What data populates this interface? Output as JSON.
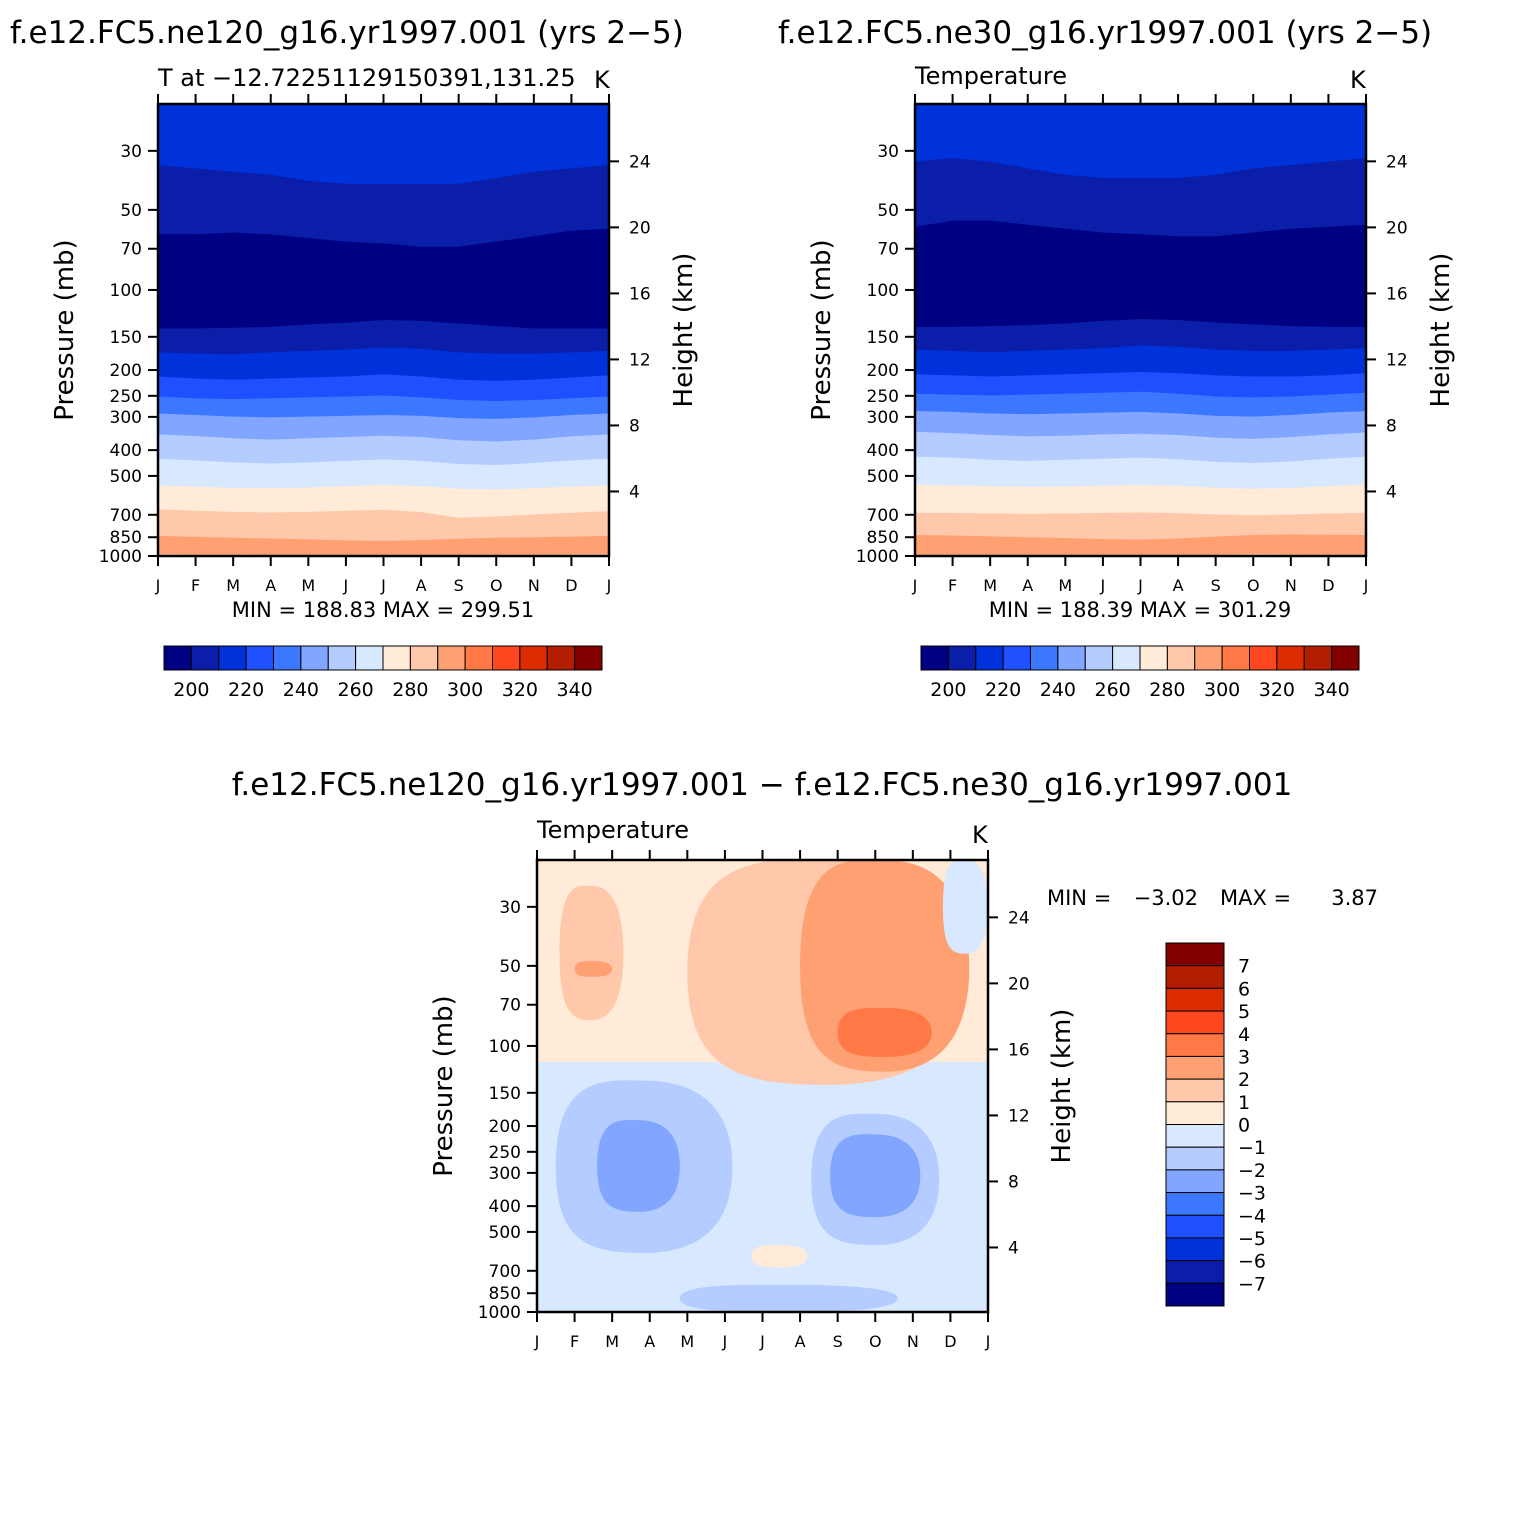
{
  "figure": {
    "panel1_header": "f.e12.FC5.ne120_g16.yr1997.001 (yrs 2−5)",
    "panel2_header": "f.e12.FC5.ne30_g16.yr1997.001 (yrs 2−5)",
    "panel3_header": "f.e12.FC5.ne120_g16.yr1997.001 − f.e12.FC5.ne30_g16.yr1997.001"
  },
  "colors": {
    "abs_scale": [
      "#000082",
      "#0a1eaa",
      "#0032dc",
      "#1e50ff",
      "#3c78ff",
      "#82a5ff",
      "#b4ccff",
      "#d7e8ff",
      "#ffebd7",
      "#ffc8aa",
      "#ffa073",
      "#ff7846",
      "#ff461e",
      "#dc2d00",
      "#b41e00",
      "#820000"
    ],
    "diff_scale": [
      "#000082",
      "#0a1eaa",
      "#0032dc",
      "#1e50ff",
      "#3c78ff",
      "#82a5ff",
      "#b4ccff",
      "#d7e8ff",
      "#ffebd7",
      "#ffc8aa",
      "#ffa073",
      "#ff7846",
      "#ff461e",
      "#dc2d00",
      "#b41e00",
      "#820000"
    ]
  },
  "chart_data": [
    {
      "type": "heatmap",
      "title": "T at −12.72251129150391,131.25",
      "units": "K",
      "xlabel": "",
      "ylabel": "Pressure (mb)",
      "y2label": "Height (km)",
      "x_ticks": [
        "J",
        "F",
        "M",
        "A",
        "M",
        "J",
        "J",
        "A",
        "S",
        "O",
        "N",
        "D",
        "J"
      ],
      "y_ticks": [
        30,
        50,
        70,
        100,
        150,
        200,
        250,
        300,
        400,
        500,
        700,
        850,
        1000
      ],
      "y_scale": "log",
      "ylim": [
        1000,
        20
      ],
      "y2_ticks": [
        4,
        8,
        12,
        16,
        20,
        24
      ],
      "stats": "MIN = 188.83 MAX = 299.51",
      "min": 188.83,
      "max": 299.51,
      "colorbar_labels": [
        "200",
        "220",
        "240",
        "260",
        "280",
        "300",
        "320",
        "340"
      ],
      "contour_levels": [
        195,
        200,
        205,
        210,
        215,
        220,
        225,
        230,
        235,
        240,
        245,
        250,
        255,
        260,
        265,
        270,
        275,
        280,
        285,
        290,
        295,
        300,
        305,
        310,
        315,
        320,
        325,
        330,
        335,
        340,
        345
      ],
      "level_boundaries_mb": {
        "x": [
          0,
          1,
          2,
          3,
          4,
          5,
          6,
          7,
          8,
          9,
          10,
          11,
          12
        ],
        "lines": [
          {
            "from_class": 1,
            "to_class": 0,
            "p": [
              62,
              62,
              61,
              62,
              64,
              66,
              67,
              69,
              69,
              66,
              63,
              60,
              59
            ]
          },
          {
            "from_class": 2,
            "to_class": 1,
            "p": [
              34,
              35,
              36,
              37,
              39,
              40,
              40,
              40,
              40,
              38,
              36,
              35,
              34
            ]
          },
          {
            "from_class": 0,
            "to_class": 1,
            "p": [
              140,
              140,
              139,
              138,
              135,
              133,
              130,
              131,
              134,
              137,
              140,
              140,
              140
            ]
          },
          {
            "from_class": 1,
            "to_class": 2,
            "p": [
              172,
              174,
              175,
              172,
              170,
              168,
              165,
              167,
              172,
              174,
              174,
              172,
              170
            ]
          },
          {
            "from_class": 2,
            "to_class": 3,
            "p": [
              212,
              216,
              218,
              216,
              214,
              212,
              208,
              212,
              218,
              220,
              218,
              214,
              210
            ]
          },
          {
            "from_class": 3,
            "to_class": 4,
            "p": [
              252,
              256,
              258,
              256,
              254,
              252,
              250,
              254,
              260,
              262,
              260,
              256,
              252
            ]
          },
          {
            "from_class": 4,
            "to_class": 5,
            "p": [
              292,
              296,
              300,
              302,
              300,
              298,
              296,
              298,
              304,
              306,
              302,
              296,
              292
            ]
          },
          {
            "from_class": 5,
            "to_class": 6,
            "p": [
              350,
              355,
              362,
              366,
              362,
              358,
              354,
              358,
              368,
              372,
              366,
              356,
              350
            ]
          },
          {
            "from_class": 6,
            "to_class": 7,
            "p": [
              432,
              438,
              446,
              450,
              446,
              440,
              434,
              440,
              452,
              456,
              448,
              438,
              432
            ]
          },
          {
            "from_class": 7,
            "to_class": 8,
            "p": [
              545,
              550,
              556,
              558,
              554,
              548,
              542,
              548,
              560,
              564,
              558,
              550,
              545
            ]
          },
          {
            "from_class": 8,
            "to_class": 9,
            "p": [
              670,
              678,
              684,
              688,
              684,
              678,
              672,
              686,
              720,
              712,
              700,
              690,
              680
            ]
          },
          {
            "from_class": 9,
            "to_class": 10,
            "p": [
              842,
              850,
              856,
              862,
              868,
              876,
              880,
              874,
              864,
              856,
              852,
              848,
              842
            ]
          },
          {
            "from_class": 10,
            "to_class": 11,
            "p": [
              985,
              990,
              992,
              994,
              996,
              998,
              998,
              996,
              994,
              992,
              990,
              988,
              985
            ]
          }
        ]
      }
    },
    {
      "type": "heatmap",
      "title": "Temperature",
      "units": "K",
      "xlabel": "",
      "ylabel": "Pressure (mb)",
      "y2label": "Height (km)",
      "x_ticks": [
        "J",
        "F",
        "M",
        "A",
        "M",
        "J",
        "J",
        "A",
        "S",
        "O",
        "N",
        "D",
        "J"
      ],
      "y_ticks": [
        30,
        50,
        70,
        100,
        150,
        200,
        250,
        300,
        400,
        500,
        700,
        850,
        1000
      ],
      "y_scale": "log",
      "ylim": [
        1000,
        20
      ],
      "y2_ticks": [
        4,
        8,
        12,
        16,
        20,
        24
      ],
      "stats": "MIN = 188.39 MAX = 301.29",
      "min": 188.39,
      "max": 301.29,
      "colorbar_labels": [
        "200",
        "220",
        "240",
        "260",
        "280",
        "300",
        "320",
        "340"
      ],
      "contour_levels": [
        195,
        200,
        205,
        210,
        215,
        220,
        225,
        230,
        235,
        240,
        245,
        250,
        255,
        260,
        265,
        270,
        275,
        280,
        285,
        290,
        295,
        300,
        305,
        310,
        315,
        320,
        325,
        330,
        335,
        340,
        345
      ],
      "level_boundaries_mb": {
        "x": [
          0,
          1,
          2,
          3,
          4,
          5,
          6,
          7,
          8,
          9,
          10,
          11,
          12
        ],
        "lines": [
          {
            "from_class": 1,
            "to_class": 0,
            "p": [
              58,
              55,
              55,
              57,
              59,
              61,
              62,
              63,
              63,
              61,
              59,
              58,
              57
            ]
          },
          {
            "from_class": 2,
            "to_class": 1,
            "p": [
              33,
              32,
              33,
              35,
              37,
              38,
              38,
              38,
              37,
              35,
              34,
              33,
              32
            ]
          },
          {
            "from_class": 0,
            "to_class": 1,
            "p": [
              138,
              138,
              137,
              136,
              134,
              131,
              129,
              130,
              133,
              135,
              137,
              138,
              138
            ]
          },
          {
            "from_class": 1,
            "to_class": 2,
            "p": [
              168,
              170,
              172,
              170,
              168,
              166,
              162,
              164,
              168,
              170,
              170,
              168,
              166
            ]
          },
          {
            "from_class": 2,
            "to_class": 3,
            "p": [
              208,
              210,
              212,
              210,
              208,
              206,
              204,
              206,
              210,
              212,
              212,
              210,
              206
            ]
          },
          {
            "from_class": 3,
            "to_class": 4,
            "p": [
              246,
              248,
              250,
              248,
              246,
              244,
              242,
              246,
              252,
              254,
              252,
              248,
              244
            ]
          },
          {
            "from_class": 4,
            "to_class": 5,
            "p": [
              286,
              288,
              292,
              294,
              292,
              290,
              288,
              292,
              298,
              300,
              296,
              290,
              286
            ]
          },
          {
            "from_class": 5,
            "to_class": 6,
            "p": [
              342,
              346,
              352,
              356,
              354,
              350,
              348,
              352,
              360,
              364,
              358,
              350,
              344
            ]
          },
          {
            "from_class": 6,
            "to_class": 7,
            "p": [
              424,
              428,
              436,
              440,
              436,
              432,
              428,
              434,
              444,
              448,
              442,
              432,
              424
            ]
          },
          {
            "from_class": 7,
            "to_class": 8,
            "p": [
              540,
              544,
              548,
              552,
              550,
              546,
              542,
              546,
              556,
              560,
              556,
              548,
              540
            ]
          },
          {
            "from_class": 8,
            "to_class": 9,
            "p": [
              690,
              690,
              694,
              696,
              694,
              690,
              688,
              692,
              700,
              704,
              700,
              694,
              690
            ]
          },
          {
            "from_class": 9,
            "to_class": 10,
            "p": [
              836,
              840,
              846,
              852,
              858,
              866,
              870,
              862,
              848,
              836,
              832,
              834,
              836
            ]
          },
          {
            "from_class": 10,
            "to_class": 11,
            "p": [
              1000,
              1000,
              1000,
              1000,
              1000,
              1000,
              1000,
              1000,
              992,
              984,
              990,
              1000,
              1000
            ]
          }
        ]
      }
    },
    {
      "type": "heatmap",
      "title": "Temperature",
      "units": "K",
      "xlabel": "",
      "ylabel": "Pressure (mb)",
      "y2label": "Height (km)",
      "x_ticks": [
        "J",
        "F",
        "M",
        "A",
        "M",
        "J",
        "J",
        "A",
        "S",
        "O",
        "N",
        "D",
        "J"
      ],
      "y_ticks": [
        30,
        50,
        70,
        100,
        150,
        200,
        250,
        300,
        400,
        500,
        700,
        850,
        1000
      ],
      "y_scale": "log",
      "ylim": [
        1000,
        20
      ],
      "y2_ticks": [
        4,
        8,
        12,
        16,
        20,
        24
      ],
      "stats_min_label": "MIN =",
      "stats_min": "−3.02",
      "stats_max_label": "MAX =",
      "stats_max": "3.87",
      "min": -3.02,
      "max": 3.87,
      "colorbar_labels": [
        "7",
        "6",
        "5",
        "4",
        "3",
        "2",
        "1",
        "0",
        "−1",
        "−2",
        "−3",
        "−4",
        "−5",
        "−6",
        "−7"
      ],
      "contour_levels": [
        -7,
        -6,
        -5,
        -4,
        -3,
        -2,
        -1,
        0,
        1,
        2,
        3,
        4,
        5,
        6,
        7
      ],
      "regions_approx": [
        {
          "value_range": [
            0,
            1
          ],
          "months": [
            0,
            12
          ],
          "p_range": [
            20,
            115
          ],
          "note": "upper layer background"
        },
        {
          "value_range": [
            -1,
            0
          ],
          "months": [
            0,
            12
          ],
          "p_range": [
            115,
            1000
          ],
          "note": "lower layer background"
        },
        {
          "value_range": [
            1,
            2
          ],
          "months": [
            0.6,
            2.3
          ],
          "p_range": [
            25,
            80
          ]
        },
        {
          "value_range": [
            2,
            3
          ],
          "months": [
            1.0,
            2.0
          ],
          "p_range": [
            48,
            55
          ]
        },
        {
          "value_range": [
            1,
            2
          ],
          "months": [
            4.0,
            11.5
          ],
          "p_range": [
            20,
            140
          ]
        },
        {
          "value_range": [
            2,
            3
          ],
          "months": [
            7.0,
            11.5
          ],
          "p_range": [
            20,
            125
          ]
        },
        {
          "value_range": [
            3,
            4
          ],
          "months": [
            8.0,
            10.5
          ],
          "p_range": [
            72,
            110
          ]
        },
        {
          "value_range": [
            -2,
            -1
          ],
          "months": [
            0.5,
            5.2
          ],
          "p_range": [
            135,
            600
          ]
        },
        {
          "value_range": [
            -3,
            -2
          ],
          "months": [
            1.6,
            3.8
          ],
          "p_range": [
            190,
            420
          ]
        },
        {
          "value_range": [
            -2,
            -1
          ],
          "months": [
            7.3,
            10.7
          ],
          "p_range": [
            180,
            560
          ]
        },
        {
          "value_range": [
            -3,
            -2
          ],
          "months": [
            7.8,
            10.2
          ],
          "p_range": [
            215,
            440
          ]
        },
        {
          "value_range": [
            -2,
            -1
          ],
          "months": [
            3.8,
            9.6
          ],
          "p_range": [
            790,
            1000
          ]
        },
        {
          "value_range": [
            0,
            1
          ],
          "months": [
            5.7,
            7.2
          ],
          "p_range": [
            560,
            680
          ]
        },
        {
          "value_range": [
            -1,
            0
          ],
          "months": [
            10.8,
            12
          ],
          "p_range": [
            20,
            45
          ]
        }
      ]
    }
  ]
}
